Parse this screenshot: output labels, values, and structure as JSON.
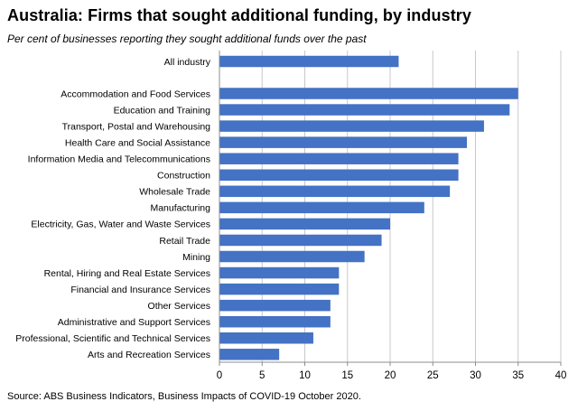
{
  "header": {
    "title": "Australia: Firms that sought additional funding, by industry",
    "subtitle": "Per cent of businesses reporting they sought additional funds over the past"
  },
  "footer": {
    "source": "Source: ABS Business Indicators, Business Impacts of COVID-19 October 2020."
  },
  "colors": {
    "bar": "#4472C4",
    "grid": "#c8c8c8",
    "axis": "#8c8c8c"
  },
  "chart_data": {
    "type": "bar",
    "orientation": "horizontal",
    "title": "Australia: Firms that sought additional funding, by industry",
    "subtitle": "Per cent of businesses reporting they sought additional funds over the past",
    "xlabel": "",
    "ylabel": "",
    "xlim": [
      0,
      40
    ],
    "xticks": [
      0,
      5,
      10,
      15,
      20,
      25,
      30,
      35,
      40
    ],
    "grid": true,
    "legend": "none",
    "categories": [
      "All industry",
      "Accommodation and Food Services",
      "Education and Training",
      "Transport, Postal and Warehousing",
      "Health Care and Social Assistance",
      "Information Media and Telecommunications",
      "Construction",
      "Wholesale Trade",
      "Manufacturing",
      "Electricity, Gas, Water and Waste Services",
      "Retail Trade",
      "Mining",
      "Rental, Hiring and Real Estate Services",
      "Financial and Insurance Services",
      "Other Services",
      "Administrative and Support Services",
      "Professional, Scientific and Technical Services",
      "Arts and Recreation Services"
    ],
    "values": [
      21,
      35,
      34,
      31,
      29,
      28,
      28,
      27,
      24,
      20,
      19,
      17,
      14,
      14,
      13,
      13,
      11,
      7
    ]
  }
}
